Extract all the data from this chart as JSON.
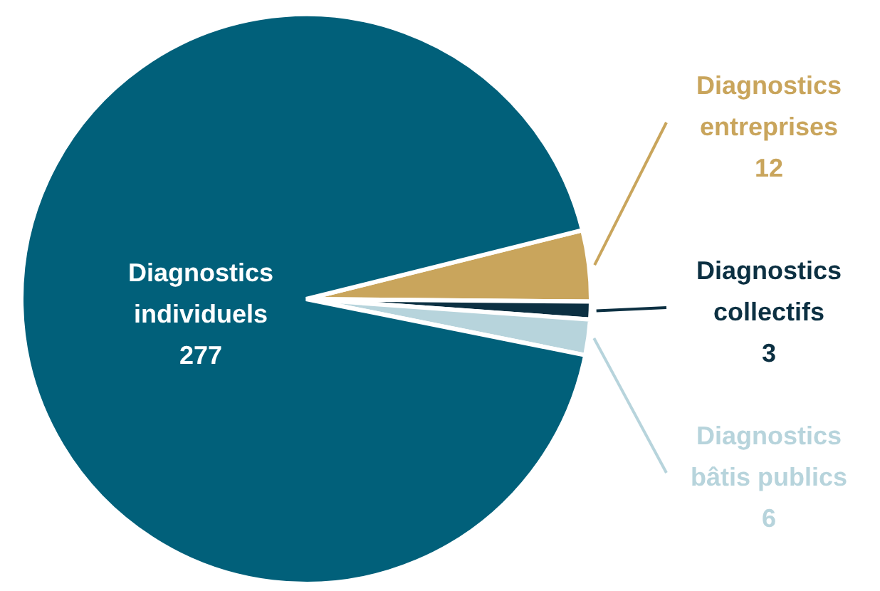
{
  "chart_data": {
    "type": "pie",
    "categories": [
      "Diagnostics entreprises",
      "Diagnostics collectifs",
      "Diagnostics bâtis publics",
      "Diagnostics individuels"
    ],
    "values": [
      12,
      3,
      6,
      277
    ],
    "colors": [
      "#c9a55c",
      "#0c3042",
      "#b7d4dc",
      "#01607a"
    ],
    "data_labels": true
  }
}
